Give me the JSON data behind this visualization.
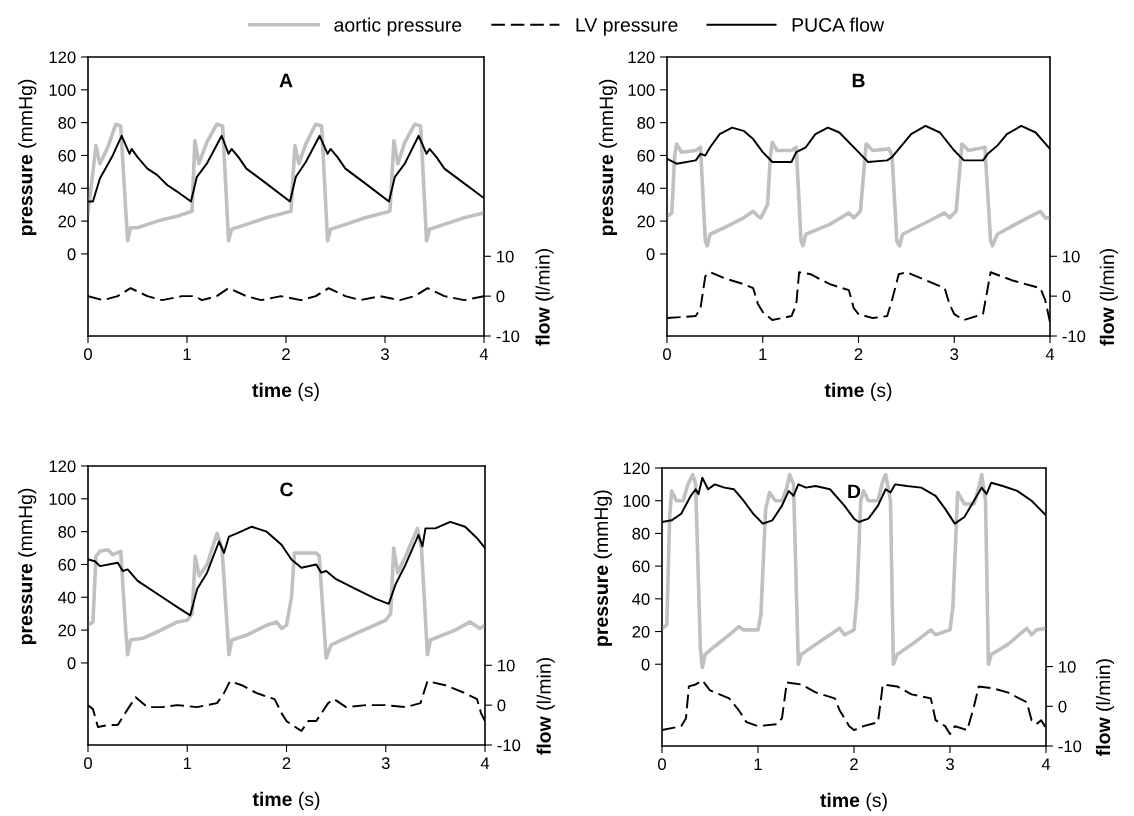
{
  "chart_data": [
    {
      "type": "line",
      "title": "A",
      "xlabel": "time (s)",
      "ylabel": "pressure (mmHg)",
      "y2label": "flow (l/min)",
      "xlim": [
        0,
        4
      ],
      "xticks": [
        0,
        1,
        2,
        3,
        4
      ],
      "ylim": [
        -50,
        120
      ],
      "yticks": [
        0,
        20,
        40,
        60,
        80,
        100,
        120
      ],
      "y2lim": [
        -10,
        60
      ],
      "y2ticks": [
        -10,
        0,
        10
      ],
      "grid": false,
      "legend": "top",
      "series": [
        {
          "name": "aortic pressure",
          "color": "#c0c0c0",
          "line_style": "solid",
          "x": [
            0,
            0.02,
            0.05,
            0.08,
            0.12,
            0.2,
            0.28,
            0.33,
            0.4,
            0.43,
            0.5,
            0.7,
            0.9,
            1.05,
            1.08,
            1.12,
            1.2,
            1.3,
            1.36,
            1.42,
            1.45,
            1.6,
            1.8,
            2.05,
            2.09,
            2.13,
            2.2,
            2.3,
            2.36,
            2.42,
            2.45,
            2.6,
            2.8,
            3.05,
            3.09,
            3.13,
            3.2,
            3.3,
            3.36,
            3.42,
            3.45,
            3.6,
            3.8,
            4.0
          ],
          "values": [
            25,
            35,
            50,
            66,
            55,
            65,
            79,
            78,
            8,
            16,
            16,
            20,
            23,
            26,
            69,
            55,
            68,
            79,
            78,
            8,
            15,
            18,
            22,
            26,
            66,
            55,
            67,
            79,
            78,
            8,
            15,
            18,
            22,
            26,
            69,
            55,
            68,
            79,
            78,
            8,
            15,
            18,
            22,
            25
          ]
        },
        {
          "name": "LV pressure",
          "color": "#000000",
          "axis": "y2",
          "line_style": "dashed",
          "x": [
            0,
            0.15,
            0.3,
            0.43,
            0.6,
            0.75,
            0.95,
            1.08,
            1.15,
            1.3,
            1.42,
            1.6,
            1.75,
            1.95,
            2.15,
            2.3,
            2.43,
            2.6,
            2.75,
            2.95,
            3.15,
            3.3,
            3.43,
            3.6,
            3.8,
            4.0
          ],
          "values": [
            0,
            -1,
            0,
            2,
            0,
            -1,
            0,
            0,
            -1,
            0,
            2,
            0,
            -1,
            0,
            -1,
            0,
            2,
            0,
            -1,
            0,
            -1,
            0,
            2,
            0,
            -1,
            0
          ]
        },
        {
          "name": "PUCA flow",
          "color": "#000000",
          "line_style": "solid",
          "x": [
            0,
            0.05,
            0.12,
            0.25,
            0.34,
            0.42,
            0.44,
            0.5,
            0.6,
            0.7,
            0.8,
            0.9,
            1.04,
            1.1,
            1.2,
            1.35,
            1.42,
            1.45,
            1.52,
            1.6,
            1.8,
            2.04,
            2.1,
            2.2,
            2.34,
            2.42,
            2.45,
            2.52,
            2.6,
            2.8,
            3.04,
            3.1,
            3.2,
            3.34,
            3.42,
            3.45,
            3.52,
            3.6,
            3.8,
            4.0
          ],
          "values": [
            32,
            32,
            46,
            60,
            72,
            61,
            64,
            59,
            52,
            48,
            42,
            38,
            32,
            47,
            55,
            72,
            61,
            64,
            59,
            52,
            43,
            32,
            47,
            56,
            72,
            61,
            64,
            59,
            52,
            43,
            32,
            47,
            55,
            72,
            61,
            64,
            59,
            52,
            43,
            34
          ]
        }
      ]
    },
    {
      "type": "line",
      "title": "B",
      "xlabel": "time (s)",
      "ylabel": "pressure (mmHg)",
      "y2label": "flow (l/min)",
      "xlim": [
        0,
        4
      ],
      "xticks": [
        0,
        1,
        2,
        3,
        4
      ],
      "ylim": [
        -50,
        120
      ],
      "yticks": [
        0,
        20,
        40,
        60,
        80,
        100,
        120
      ],
      "y2lim": [
        -10,
        60
      ],
      "y2ticks": [
        -10,
        0,
        10
      ],
      "grid": false,
      "series": [
        {
          "color": "#c0c0c0",
          "line_style": "solid",
          "x": [
            0,
            0.05,
            0.08,
            0.1,
            0.15,
            0.3,
            0.35,
            0.4,
            0.42,
            0.45,
            0.6,
            0.8,
            0.9,
            0.95,
            0.98,
            1.05,
            1.08,
            1.1,
            1.15,
            1.3,
            1.35,
            1.4,
            1.42,
            1.45,
            1.7,
            1.9,
            1.95,
            2.02,
            2.08,
            2.15,
            2.32,
            2.35,
            2.4,
            2.43,
            2.46,
            2.7,
            2.9,
            2.95,
            3.02,
            3.08,
            3.15,
            3.32,
            3.38,
            3.4,
            3.45,
            3.7,
            3.9,
            3.95,
            4.0
          ],
          "values": [
            23,
            25,
            60,
            67,
            62,
            63,
            65,
            8,
            5,
            12,
            16,
            22,
            26,
            23,
            22,
            30,
            60,
            68,
            63,
            63,
            65,
            8,
            5,
            12,
            18,
            25,
            22,
            26,
            67,
            63,
            64,
            60,
            8,
            5,
            12,
            19,
            25,
            22,
            26,
            67,
            63,
            65,
            8,
            5,
            12,
            20,
            26,
            22,
            22
          ]
        },
        {
          "color": "#000000",
          "axis": "y2",
          "line_style": "dashed",
          "x": [
            0,
            0.3,
            0.35,
            0.4,
            0.45,
            0.6,
            0.8,
            0.9,
            0.95,
            1.0,
            1.05,
            1.1,
            1.3,
            1.35,
            1.38,
            1.5,
            1.7,
            1.9,
            1.95,
            2.0,
            2.15,
            2.3,
            2.35,
            2.42,
            2.5,
            2.7,
            2.9,
            2.95,
            3.0,
            3.1,
            3.3,
            3.38,
            3.6,
            3.9,
            3.95,
            4.0
          ],
          "values": [
            -5.5,
            -5,
            -3,
            5,
            6,
            4.5,
            3,
            2,
            -2,
            -4,
            -5,
            -6,
            -5,
            -2,
            6,
            5.5,
            3,
            1.5,
            -3,
            -4.5,
            -5.5,
            -5,
            -1,
            5.5,
            6,
            4,
            2,
            -2,
            -4.5,
            -6,
            -4.5,
            6,
            4,
            2,
            -1,
            -6.5
          ]
        },
        {
          "color": "#000000",
          "line_style": "solid",
          "x": [
            0,
            0.1,
            0.3,
            0.35,
            0.4,
            0.45,
            0.55,
            0.68,
            0.8,
            0.9,
            1.0,
            1.1,
            1.3,
            1.35,
            1.45,
            1.55,
            1.68,
            1.8,
            2.0,
            2.1,
            2.3,
            2.35,
            2.45,
            2.55,
            2.7,
            2.85,
            3.0,
            3.1,
            3.3,
            3.35,
            3.45,
            3.55,
            3.7,
            3.85,
            4.0
          ],
          "values": [
            58,
            55,
            57,
            61,
            60,
            65,
            73,
            77,
            75,
            70,
            62,
            56,
            56,
            62,
            65,
            73,
            77,
            74,
            62,
            56,
            57,
            59,
            66,
            73,
            78,
            74,
            63,
            57,
            57,
            61,
            66,
            73,
            78,
            74,
            64
          ]
        }
      ]
    },
    {
      "type": "line",
      "title": "C",
      "xlabel": "time (s)",
      "ylabel": "pressure (mmHg)",
      "y2label": "flow (l/min)",
      "xlim": [
        0,
        4
      ],
      "xticks": [
        0,
        1,
        2,
        3,
        4
      ],
      "ylim": [
        -50,
        120
      ],
      "yticks": [
        0,
        20,
        40,
        60,
        80,
        100,
        120
      ],
      "y2lim": [
        -10,
        60
      ],
      "y2ticks": [
        -10,
        0,
        10
      ],
      "grid": false,
      "series": [
        {
          "color": "#c0c0c0",
          "line_style": "solid",
          "x": [
            0,
            0.05,
            0.08,
            0.12,
            0.2,
            0.25,
            0.33,
            0.38,
            0.4,
            0.43,
            0.55,
            0.7,
            0.9,
            1.0,
            1.05,
            1.08,
            1.12,
            1.2,
            1.3,
            1.35,
            1.42,
            1.45,
            1.6,
            1.8,
            1.9,
            1.95,
            2.0,
            2.05,
            2.08,
            2.3,
            2.33,
            2.38,
            2.4,
            2.45,
            2.7,
            3.0,
            3.05,
            3.08,
            3.12,
            3.2,
            3.32,
            3.36,
            3.42,
            3.45,
            3.7,
            3.85,
            3.95,
            4.0
          ],
          "values": [
            23,
            25,
            65,
            68,
            69,
            66,
            68,
            20,
            5,
            14,
            15,
            19,
            25,
            26,
            30,
            65,
            53,
            60,
            79,
            70,
            5,
            14,
            17,
            23,
            25,
            21,
            23,
            40,
            67,
            67,
            65,
            20,
            3,
            11,
            18,
            26,
            30,
            70,
            55,
            65,
            82,
            70,
            5,
            14,
            20,
            25,
            21,
            23
          ]
        },
        {
          "color": "#000000",
          "axis": "y2",
          "line_style": "dashed",
          "x": [
            0,
            0.05,
            0.1,
            0.2,
            0.3,
            0.4,
            0.48,
            0.6,
            0.75,
            0.9,
            1.1,
            1.3,
            1.37,
            1.43,
            1.55,
            1.7,
            1.88,
            1.95,
            2.0,
            2.15,
            2.22,
            2.3,
            2.42,
            2.48,
            2.6,
            2.8,
            3.0,
            3.2,
            3.35,
            3.42,
            3.6,
            3.8,
            3.92,
            3.96,
            4.0
          ],
          "values": [
            0,
            -1,
            -5.5,
            -5,
            -5,
            -1,
            2,
            -0.5,
            -0.5,
            0,
            -0.5,
            0.5,
            3,
            6,
            5,
            3,
            1.5,
            -2,
            -4,
            -6.5,
            -4,
            -4,
            0.5,
            1.5,
            -0.5,
            0,
            0,
            -0.5,
            0.5,
            6,
            5,
            3,
            1.5,
            -2,
            -4
          ]
        },
        {
          "color": "#000000",
          "line_style": "solid",
          "x": [
            0,
            0.07,
            0.12,
            0.3,
            0.35,
            0.4,
            0.5,
            0.7,
            0.9,
            1.03,
            1.1,
            1.2,
            1.32,
            1.37,
            1.42,
            1.5,
            1.65,
            1.8,
            1.95,
            2.05,
            2.15,
            2.3,
            2.35,
            2.4,
            2.5,
            2.7,
            2.9,
            3.03,
            3.1,
            3.2,
            3.33,
            3.37,
            3.4,
            3.5,
            3.65,
            3.8,
            3.92,
            4.0
          ],
          "values": [
            63,
            62,
            59,
            61,
            56,
            57,
            50,
            42,
            34,
            29,
            45,
            55,
            74,
            67,
            77,
            79,
            83,
            80,
            72,
            63,
            58,
            60,
            55,
            56,
            51,
            45,
            39,
            36,
            48,
            60,
            78,
            71,
            82,
            82,
            86,
            83,
            76,
            70
          ]
        }
      ]
    },
    {
      "type": "line",
      "title": "D",
      "xlabel": "time (s)",
      "ylabel": "pressure (mmHg)",
      "y2label": "flow (l/min)",
      "xlim": [
        0,
        4
      ],
      "xticks": [
        0,
        1,
        2,
        3,
        4
      ],
      "ylim": [
        -50,
        120
      ],
      "yticks": [
        0,
        20,
        40,
        60,
        80,
        100,
        120
      ],
      "y2lim": [
        -10,
        60
      ],
      "y2ticks": [
        -10,
        0,
        10
      ],
      "grid": false,
      "series": [
        {
          "color": "#c0c0c0",
          "line_style": "solid",
          "x": [
            0,
            0.05,
            0.08,
            0.1,
            0.15,
            0.22,
            0.27,
            0.32,
            0.35,
            0.4,
            0.42,
            0.45,
            0.55,
            0.7,
            0.8,
            0.85,
            1.0,
            1.03,
            1.08,
            1.12,
            1.18,
            1.25,
            1.3,
            1.33,
            1.37,
            1.42,
            1.45,
            1.6,
            1.8,
            1.85,
            1.9,
            2.0,
            2.03,
            2.07,
            2.1,
            2.15,
            2.25,
            2.3,
            2.33,
            2.38,
            2.41,
            2.45,
            2.6,
            2.8,
            2.85,
            3.0,
            3.03,
            3.08,
            3.15,
            3.25,
            3.3,
            3.33,
            3.37,
            3.4,
            3.43,
            3.6,
            3.8,
            3.85,
            3.9,
            4.0
          ],
          "values": [
            22,
            24,
            90,
            106,
            100,
            100,
            110,
            116,
            110,
            10,
            -2,
            6,
            11,
            18,
            23,
            21,
            21,
            30,
            95,
            105,
            100,
            100,
            108,
            116,
            110,
            0,
            6,
            12,
            20,
            22,
            18,
            21,
            40,
            100,
            106,
            100,
            100,
            112,
            116,
            100,
            0,
            6,
            12,
            21,
            18,
            21,
            35,
            105,
            98,
            98,
            108,
            116,
            100,
            0,
            6,
            12,
            22,
            18,
            21,
            22
          ]
        },
        {
          "color": "#000000",
          "axis": "y2",
          "line_style": "dashed",
          "x": [
            0,
            0.2,
            0.25,
            0.28,
            0.35,
            0.42,
            0.5,
            0.7,
            0.8,
            0.88,
            1.0,
            1.2,
            1.25,
            1.3,
            1.45,
            1.6,
            1.8,
            1.85,
            1.95,
            2.0,
            2.1,
            2.25,
            2.3,
            2.45,
            2.6,
            2.8,
            2.85,
            2.95,
            3.0,
            3.05,
            3.18,
            3.25,
            3.3,
            3.45,
            3.6,
            3.8,
            3.85,
            3.9,
            3.95,
            4.0
          ],
          "values": [
            -6,
            -5,
            -3,
            5,
            5.5,
            6.5,
            4,
            2,
            -1,
            -4,
            -5,
            -4.5,
            -3,
            6,
            5.5,
            3.5,
            2,
            -1,
            -5,
            -6,
            -5,
            -4,
            5.5,
            5,
            3,
            2,
            -3.5,
            -5,
            -7,
            -5,
            -6,
            0,
            5,
            4.5,
            3.5,
            1,
            -3.5,
            -4.5,
            -3.5,
            -5.5
          ]
        },
        {
          "color": "#000000",
          "line_style": "solid",
          "x": [
            0,
            0.1,
            0.2,
            0.3,
            0.35,
            0.38,
            0.42,
            0.48,
            0.55,
            0.65,
            0.75,
            0.85,
            0.95,
            1.05,
            1.15,
            1.25,
            1.32,
            1.37,
            1.42,
            1.5,
            1.6,
            1.75,
            1.9,
            2.0,
            2.05,
            2.15,
            2.25,
            2.33,
            2.38,
            2.43,
            2.55,
            2.7,
            2.85,
            2.95,
            3.05,
            3.15,
            3.25,
            3.33,
            3.38,
            3.43,
            3.55,
            3.7,
            3.85,
            4.0
          ],
          "values": [
            87,
            88,
            92,
            103,
            107,
            104,
            114,
            107,
            110,
            108,
            107,
            100,
            92,
            86,
            88,
            97,
            106,
            103,
            110,
            108,
            109,
            107,
            97,
            89,
            87,
            89,
            97,
            107,
            105,
            110,
            109,
            108,
            103,
            95,
            86,
            90,
            100,
            108,
            104,
            111,
            109,
            106,
            100,
            91
          ]
        }
      ]
    }
  ]
}
